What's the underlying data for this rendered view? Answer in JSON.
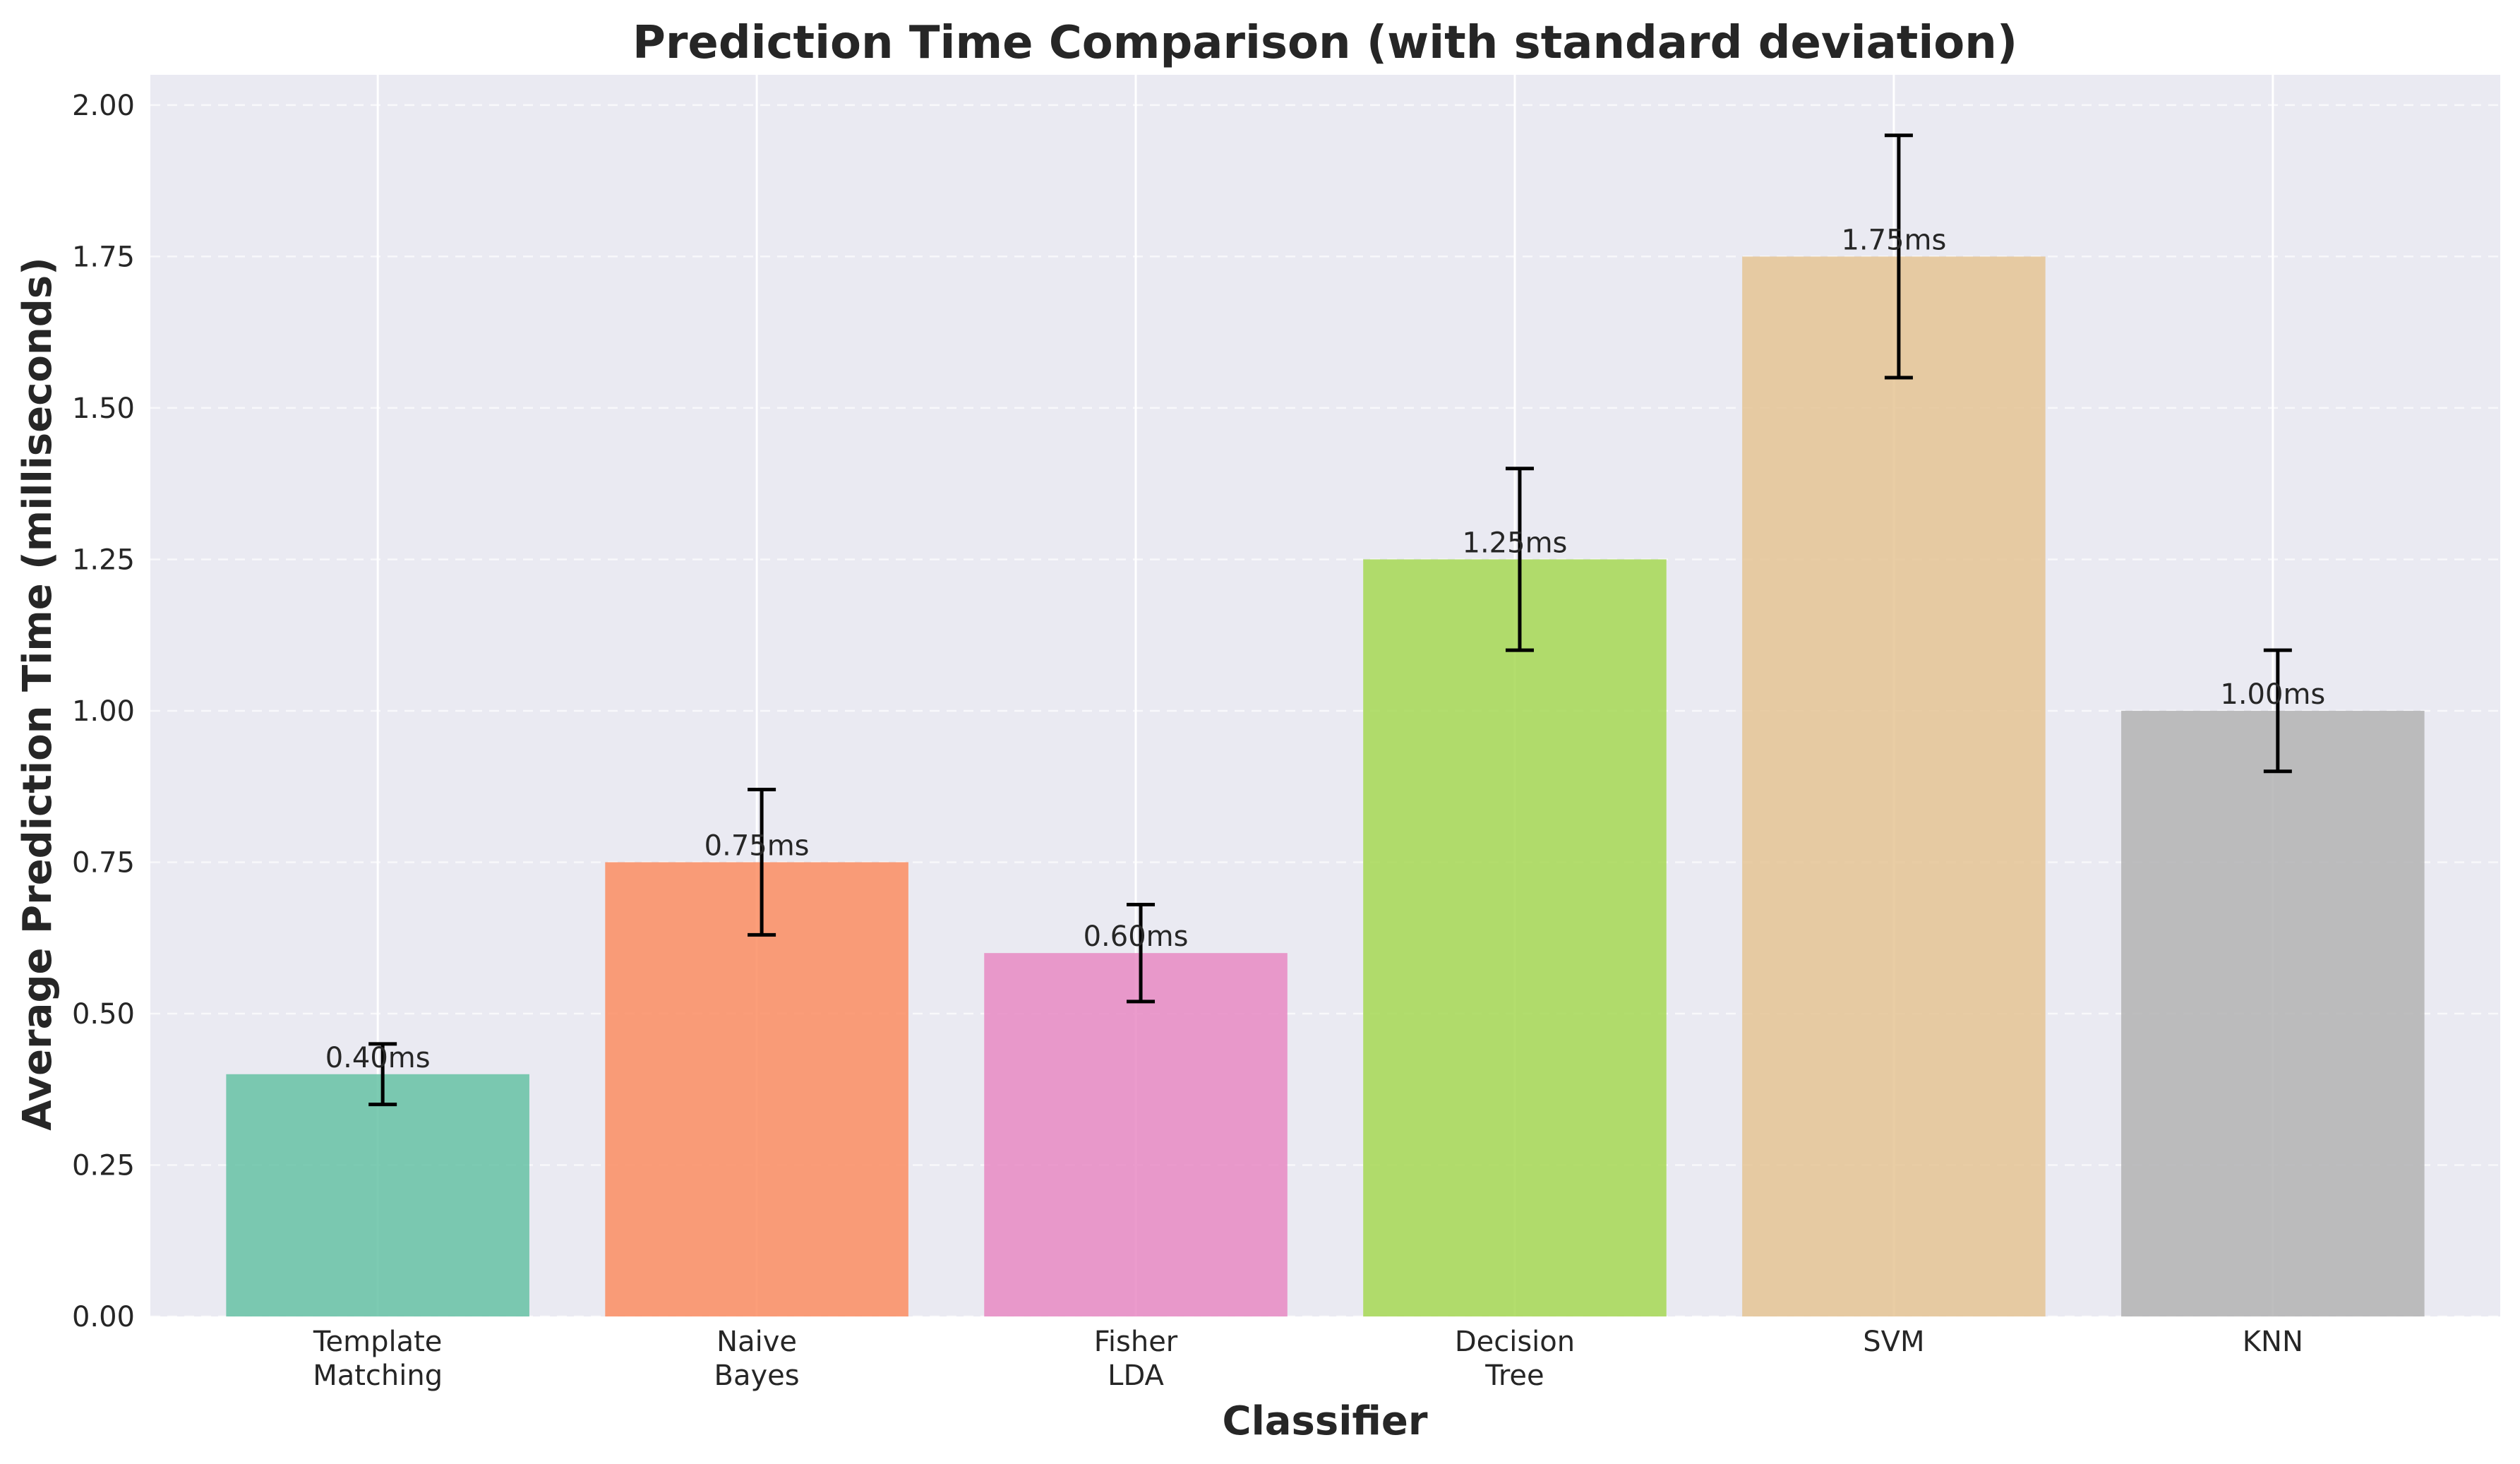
{
  "chart_data": {
    "type": "bar",
    "title": "Prediction Time Comparison (with standard deviation)",
    "xlabel": "Classifier",
    "ylabel": "Average Prediction Time (milliseconds)",
    "categories": [
      [
        "Template",
        "Matching"
      ],
      [
        "Naive",
        "Bayes"
      ],
      [
        "Fisher",
        "LDA"
      ],
      [
        "Decision",
        "Tree"
      ],
      [
        "SVM"
      ],
      [
        "KNN"
      ]
    ],
    "values": [
      0.4,
      0.75,
      0.6,
      1.25,
      1.75,
      1.0
    ],
    "errors": [
      0.05,
      0.12,
      0.08,
      0.15,
      0.2,
      0.1
    ],
    "data_labels": [
      "0.40ms",
      "0.75ms",
      "0.60ms",
      "1.25ms",
      "1.75ms",
      "1.00ms"
    ],
    "colors": [
      "#66c2a5",
      "#fc8d62",
      "#e78ac3",
      "#a6d854",
      "#e5c494",
      "#b3b3b3"
    ],
    "ylim": [
      0,
      2.05
    ],
    "yticks": [
      0.0,
      0.25,
      0.5,
      0.75,
      1.0,
      1.25,
      1.5,
      1.75,
      2.0
    ],
    "ytick_labels": [
      "0.00",
      "0.25",
      "0.50",
      "0.75",
      "1.00",
      "1.25",
      "1.50",
      "1.75",
      "2.00"
    ],
    "grid": true,
    "style": {
      "background": "#eaeaf2",
      "grid_color": "#ffffff",
      "text_color": "#262626",
      "error_bar_color": "#000000"
    }
  }
}
